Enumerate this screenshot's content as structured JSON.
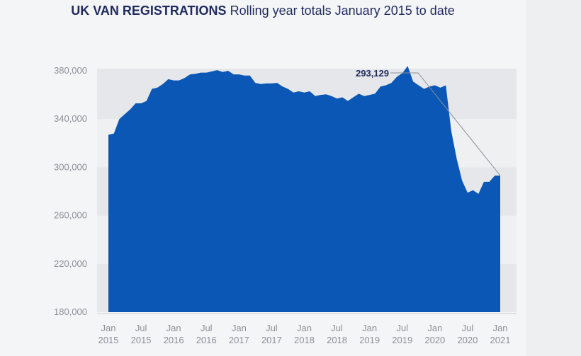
{
  "chart_data": {
    "type": "area",
    "title_bold": "UK VAN REGISTRATIONS",
    "title_rest": "Rolling year totals January 2015 to date",
    "xlabel": "",
    "ylabel": "",
    "ylim": [
      180000,
      380000
    ],
    "y_ticks": [
      180000,
      220000,
      260000,
      300000,
      340000,
      380000
    ],
    "y_tick_labels": [
      "180,000",
      "220,000",
      "260,000",
      "300,000",
      "340,000",
      "380,000"
    ],
    "x_tick_labels": [
      {
        "month": "Jan",
        "year": "2015",
        "index": 0
      },
      {
        "month": "Jul",
        "year": "2015",
        "index": 6
      },
      {
        "month": "Jan",
        "year": "2016",
        "index": 12
      },
      {
        "month": "Jul",
        "year": "2016",
        "index": 18
      },
      {
        "month": "Jan",
        "year": "2017",
        "index": 24
      },
      {
        "month": "Jul",
        "year": "2017",
        "index": 30
      },
      {
        "month": "Jan",
        "year": "2018",
        "index": 36
      },
      {
        "month": "Jul",
        "year": "2018",
        "index": 42
      },
      {
        "month": "Jan",
        "year": "2019",
        "index": 48
      },
      {
        "month": "Jul",
        "year": "2019",
        "index": 54
      },
      {
        "month": "Jan",
        "year": "2020",
        "index": 60
      },
      {
        "month": "Jul",
        "year": "2020",
        "index": 66
      },
      {
        "month": "Jan",
        "year": "2021",
        "index": 72
      }
    ],
    "grid": "alternating horizontal bands",
    "fill_color": "#0a57b5",
    "values": [
      327000,
      328000,
      340000,
      344000,
      348000,
      353000,
      353000,
      355000,
      365000,
      366000,
      369000,
      373000,
      372000,
      372000,
      374000,
      377000,
      377500,
      378500,
      378500,
      379500,
      380500,
      379000,
      380000,
      377000,
      377000,
      376000,
      376000,
      370000,
      369000,
      369500,
      369500,
      370000,
      367000,
      365000,
      362000,
      363000,
      362000,
      363000,
      359000,
      360000,
      360500,
      359000,
      357000,
      358000,
      355000,
      358000,
      361000,
      359000,
      360000,
      361000,
      367000,
      368000,
      370000,
      375000,
      378000,
      384000,
      371000,
      368000,
      365000,
      367000,
      368000,
      366000,
      368000,
      330000,
      307000,
      289000,
      279000,
      281000,
      278000,
      288000,
      288000,
      293129,
      293129
    ],
    "annotation": {
      "text": "293,129",
      "value": 293129
    }
  }
}
